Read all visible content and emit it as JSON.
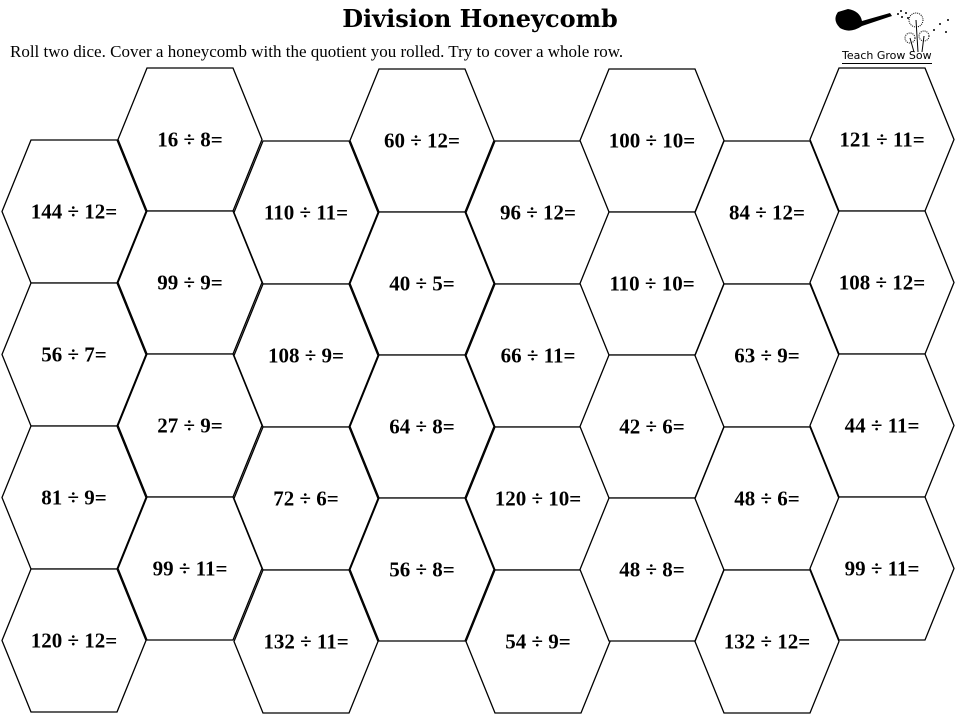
{
  "title": "Division Honeycomb",
  "instructions": "Roll two dice. Cover a honeycomb with the quotient you rolled. Try to cover a whole row.",
  "logo": {
    "text": "Teach Grow Sow",
    "icon": "watering-can-dandelion-icon"
  },
  "columns": [
    [
      "144 ÷ 12=",
      "56 ÷ 7=",
      "81 ÷ 9=",
      "120 ÷ 12="
    ],
    [
      "16 ÷ 8=",
      "99 ÷ 9=",
      "27 ÷ 9=",
      "99 ÷ 11="
    ],
    [
      "110 ÷ 11=",
      "108 ÷ 9=",
      "72 ÷ 6=",
      "132 ÷ 11="
    ],
    [
      "60 ÷ 12=",
      "40 ÷ 5=",
      "64 ÷ 8=",
      "56 ÷ 8="
    ],
    [
      "96 ÷ 12=",
      "66 ÷ 11=",
      "120 ÷ 10=",
      "54 ÷ 9="
    ],
    [
      "100 ÷ 10=",
      "110 ÷ 10=",
      "42 ÷ 6=",
      "48 ÷ 8="
    ],
    [
      "84 ÷ 12=",
      "63 ÷ 9=",
      "48 ÷ 6=",
      "132 ÷ 12="
    ],
    [
      "121 ÷ 11=",
      "108 ÷ 12=",
      "44 ÷ 11=",
      "99 ÷ 11="
    ]
  ]
}
